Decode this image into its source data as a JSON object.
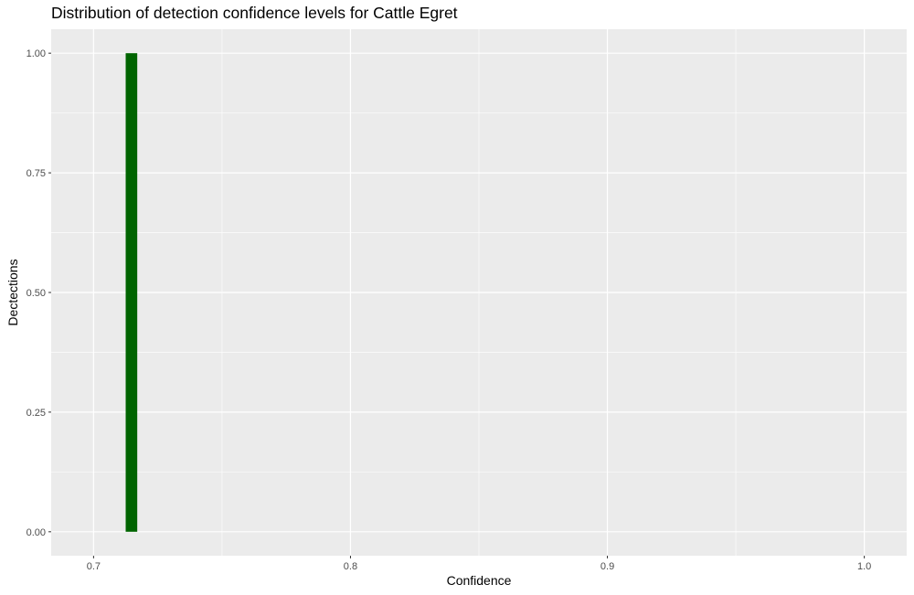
{
  "chart_data": {
    "type": "bar",
    "title": "Distribution of detection confidence levels for Cattle Egret",
    "xlabel": "Confidence",
    "ylabel": "Dectections",
    "xlim": [
      0.6835,
      1.0165
    ],
    "ylim": [
      -0.05,
      1.05
    ],
    "x_ticks": [
      0.7,
      0.8,
      0.9,
      1.0
    ],
    "x_tick_labels": [
      "0.7",
      "0.8",
      "0.9",
      "1.0"
    ],
    "y_ticks": [
      0.0,
      0.25,
      0.5,
      0.75,
      1.0
    ],
    "y_tick_labels": [
      "0.00",
      "0.25",
      "0.50",
      "0.75",
      "1.00"
    ],
    "bins": [
      {
        "x_start": 0.7125,
        "x_end": 0.717,
        "count": 1
      }
    ],
    "bar_color": "#006400",
    "panel_background": "#ebebeb",
    "grid_color": "#ffffff",
    "grid": true,
    "legend": "none"
  }
}
